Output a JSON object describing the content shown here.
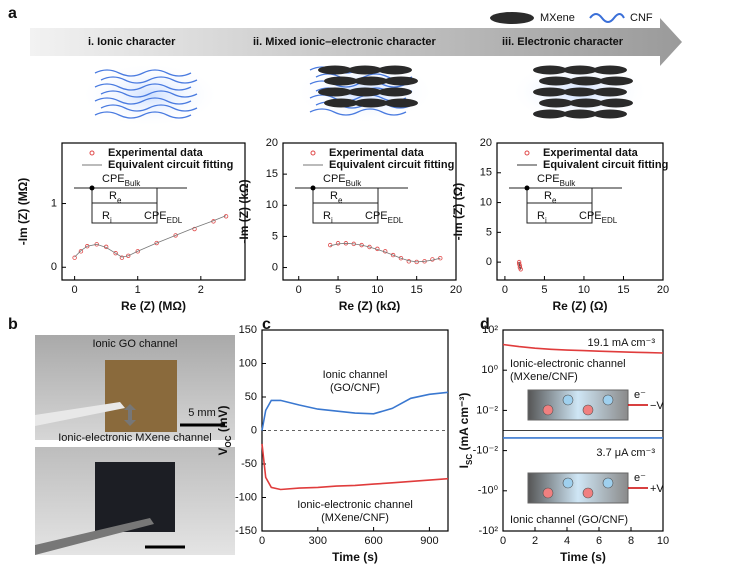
{
  "panel_labels": [
    "a",
    "b",
    "c",
    "d"
  ],
  "materials": [
    "MXene",
    "CNF"
  ],
  "stages": [
    "i. Ionic character",
    "ii. Mixed ionic–electronic character",
    "iii. Electronic character"
  ],
  "photos": {
    "top_label": "Ionic GO channel",
    "scale_bar": "5 mm",
    "bottom_label": "Ionic-electronic MXene channel"
  },
  "chart_data": [
    {
      "type": "scatter",
      "xlabel": "Re (Z) (MΩ)",
      "ylabel": "-Im (Z) (MΩ)",
      "xlim": [
        -0.2,
        2.7
      ],
      "ylim": [
        -0.2,
        1.95
      ],
      "xticks": [
        0,
        1,
        2
      ],
      "yticks": [
        0,
        1
      ],
      "x": [
        0,
        0.1,
        0.2,
        0.35,
        0.5,
        0.65,
        0.75,
        0.85,
        1.0,
        1.3,
        1.6,
        1.9,
        2.2,
        2.4
      ],
      "series": [
        {
          "name": "Experimental data",
          "color": "#e04848",
          "style": "markers",
          "values": [
            0.15,
            0.25,
            0.33,
            0.36,
            0.32,
            0.22,
            0.15,
            0.18,
            0.25,
            0.38,
            0.5,
            0.6,
            0.72,
            0.8
          ]
        },
        {
          "name": "Equivalent circuit fitting",
          "color": "#777777",
          "style": "line",
          "values": [
            0.16,
            0.26,
            0.33,
            0.36,
            0.31,
            0.22,
            0.16,
            0.18,
            0.25,
            0.38,
            0.5,
            0.62,
            0.73,
            0.81
          ]
        }
      ],
      "circuit": [
        {
          "main": "CPE",
          "sub": "Bulk"
        },
        {
          "main": "R",
          "sub": "e"
        },
        {
          "main": "R",
          "sub": "i"
        },
        {
          "main": "CPE",
          "sub": "EDL"
        }
      ]
    },
    {
      "type": "scatter",
      "xlabel": "Re (Z) (kΩ)",
      "ylabel": "-Im (Z) (kΩ)",
      "xlim": [
        -2,
        20
      ],
      "ylim": [
        -2,
        20
      ],
      "xticks": [
        0,
        5,
        10,
        15,
        20
      ],
      "yticks": [
        0,
        5,
        10,
        15,
        20
      ],
      "x": [
        4,
        5,
        6,
        7,
        8,
        9,
        10,
        11,
        12,
        13,
        14,
        15,
        16,
        17,
        18
      ],
      "series": [
        {
          "name": "Experimental data",
          "color": "#e04848",
          "style": "markers",
          "values": [
            3.6,
            3.9,
            3.9,
            3.8,
            3.6,
            3.3,
            3.0,
            2.6,
            2.0,
            1.5,
            1.0,
            0.9,
            1.0,
            1.3,
            1.5
          ]
        },
        {
          "name": "Equivalent circuit fitting",
          "color": "#777777",
          "style": "line",
          "values": [
            3.5,
            3.8,
            3.9,
            3.8,
            3.6,
            3.3,
            2.9,
            2.5,
            2.0,
            1.5,
            1.1,
            0.9,
            1.0,
            1.2,
            1.5
          ]
        }
      ],
      "circuit": [
        {
          "main": "CPE",
          "sub": "Bulk"
        },
        {
          "main": "R",
          "sub": "e"
        },
        {
          "main": "R",
          "sub": "i"
        },
        {
          "main": "CPE",
          "sub": "EDL"
        }
      ]
    },
    {
      "type": "scatter",
      "xlabel": "Re (Z) (Ω)",
      "ylabel": "-Im (Z) (Ω)",
      "xlim": [
        -1,
        20
      ],
      "ylim": [
        -3,
        20
      ],
      "xticks": [
        0,
        5,
        10,
        15,
        20
      ],
      "yticks": [
        0,
        5,
        10,
        15,
        20
      ],
      "x": [
        1.8,
        1.8,
        1.9,
        1.9,
        2.0
      ],
      "series": [
        {
          "name": "Experimental data",
          "color": "#e04848",
          "style": "markers",
          "values": [
            0,
            -0.3,
            -0.6,
            -0.9,
            -1.2
          ]
        },
        {
          "name": "Equivalent circuit fitting",
          "color": "#333333",
          "style": "line",
          "values": [
            0,
            -0.3,
            -0.6,
            -0.9,
            -1.2
          ]
        }
      ],
      "circuit": [
        {
          "main": "CPE",
          "sub": "Bulk"
        },
        {
          "main": "R",
          "sub": "e"
        },
        {
          "main": "R",
          "sub": "i"
        },
        {
          "main": "CPE",
          "sub": "EDL"
        }
      ]
    },
    {
      "type": "line",
      "xlabel": "Time (s)",
      "ylabel": {
        "main": "V",
        "sub": "OC",
        "unit": " (mV)"
      },
      "xlim": [
        0,
        1000
      ],
      "ylim": [
        -150,
        150
      ],
      "xticks": [
        0,
        300,
        600,
        900
      ],
      "yticks": [
        -150,
        -100,
        -50,
        0,
        50,
        100,
        150
      ],
      "x": [
        0,
        20,
        50,
        100,
        200,
        300,
        400,
        500,
        600,
        700,
        800,
        900,
        1000
      ],
      "series": [
        {
          "label_lines": [
            "Ionic channel",
            "(GO/CNF)"
          ],
          "color": "#3a78d0",
          "style": "line",
          "values": [
            0,
            30,
            45,
            45,
            38,
            32,
            29,
            26,
            25,
            33,
            48,
            54,
            57
          ]
        },
        {
          "label_lines": [
            "Ionic-electronic channel",
            "(MXene/CNF)"
          ],
          "color": "#e03c3c",
          "style": "line",
          "values": [
            -20,
            -70,
            -85,
            -88,
            -86,
            -85,
            -83,
            -82,
            -80,
            -78,
            -76,
            -74,
            -72
          ]
        }
      ]
    },
    {
      "type": "line",
      "xlabel": "Time (s)",
      "ylabel": {
        "main": "I",
        "sub": "SC",
        "unit": " (mA cm⁻³)"
      },
      "yscale": "symlog",
      "linthresh": 0.01,
      "xlim": [
        0,
        10
      ],
      "ylim": [
        -100,
        100
      ],
      "xticks": [
        0,
        2,
        4,
        6,
        8,
        10
      ],
      "yticks": [
        {
          "value": 100,
          "label": "10²"
        },
        {
          "value": 1,
          "label": "10⁰"
        },
        {
          "value": 0.01,
          "label": "10⁻²"
        },
        {
          "value": -0.01,
          "label": "-10⁻²"
        },
        {
          "value": -1,
          "label": "-10⁰"
        },
        {
          "value": -100,
          "label": "-10²"
        }
      ],
      "x": [
        0,
        1,
        2,
        3,
        4,
        5,
        6,
        7,
        8,
        9,
        10
      ],
      "series": [
        {
          "label_lines": [
            "Ionic-electronic channel",
            "(MXene/CNF)"
          ],
          "note": "19.1 mA cm⁻³",
          "color": "#e03c3c",
          "style": "line",
          "values": [
            19.1,
            15,
            12.5,
            11,
            10,
            9.4,
            8.8,
            8.3,
            7.9,
            7.5,
            7.2
          ]
        },
        {
          "label_lines": [
            "Ionic channel (GO/CNF)"
          ],
          "note": "3.7 μA cm⁻³",
          "color": "#3a78d0",
          "style": "line",
          "values": [
            -0.0037,
            -0.0037,
            -0.0037,
            -0.0037,
            -0.0037,
            -0.0037,
            -0.0037,
            -0.0037,
            -0.0037,
            -0.0037,
            -0.0037
          ]
        }
      ],
      "insets": [
        {
          "electron": "e⁻",
          "terminal": "−V"
        },
        {
          "electron": "e⁻",
          "terminal": "+V"
        }
      ]
    }
  ]
}
